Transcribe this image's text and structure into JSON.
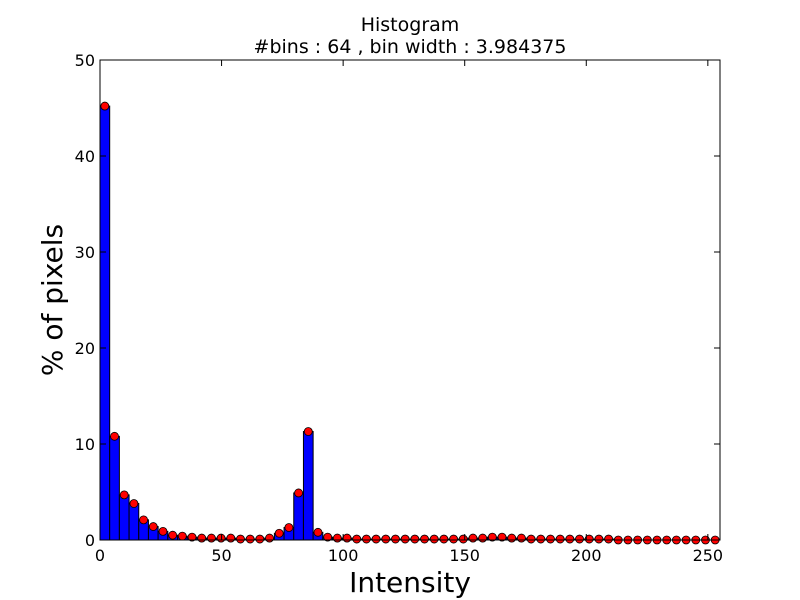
{
  "chart_data": {
    "type": "bar",
    "title": "Histogram",
    "subtitle": "#bins : 64 , bin width : 3.984375",
    "xlabel": "Intensity",
    "ylabel": "% of pixels",
    "xlim": [
      0,
      255
    ],
    "ylim": [
      0,
      50
    ],
    "x_ticks": [
      0,
      50,
      100,
      150,
      200,
      250
    ],
    "y_ticks": [
      0,
      10,
      20,
      30,
      40,
      50
    ],
    "grid": false,
    "bin_width": 3.984375,
    "bar_color": "#0000ff",
    "marker_color": "#ff0000",
    "values": [
      45.2,
      10.8,
      4.7,
      3.8,
      2.1,
      1.4,
      0.9,
      0.5,
      0.4,
      0.3,
      0.2,
      0.2,
      0.2,
      0.2,
      0.1,
      0.1,
      0.1,
      0.2,
      0.7,
      1.3,
      4.9,
      11.3,
      0.8,
      0.3,
      0.2,
      0.2,
      0.1,
      0.1,
      0.1,
      0.1,
      0.1,
      0.1,
      0.1,
      0.1,
      0.1,
      0.1,
      0.1,
      0.1,
      0.2,
      0.2,
      0.3,
      0.3,
      0.2,
      0.2,
      0.1,
      0.1,
      0.1,
      0.1,
      0.1,
      0.1,
      0.1,
      0.1,
      0.1,
      0.0,
      0.0,
      0.0,
      0.0,
      0.0,
      0.0,
      0.0,
      0.0,
      0.0,
      0.0,
      0.0
    ]
  }
}
